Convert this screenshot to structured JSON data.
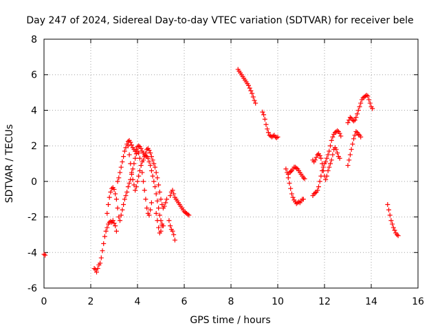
{
  "chart_data": {
    "type": "scatter",
    "title": "Day 247 of 2024, Sidereal Day-to-day VTEC variation (SDTVAR) for receiver bele",
    "xlabel": "GPS time / hours",
    "ylabel": "SDTVAR / TECUs",
    "xlim": [
      0,
      16
    ],
    "ylim": [
      -6,
      8
    ],
    "xticks": [
      "0",
      "2",
      "4",
      "6",
      "8",
      "10",
      "12",
      "14",
      "16"
    ],
    "yticks": [
      "-6",
      "-4",
      "-2",
      "0",
      "2",
      "4",
      "6",
      "8"
    ],
    "grid": true,
    "marker": "plus",
    "color": "#ff0000",
    "series": [
      {
        "points": [
          [
            0.0,
            -4.1
          ],
          [
            0.05,
            -4.15
          ],
          [
            2.15,
            -4.9
          ],
          [
            2.2,
            -4.95
          ],
          [
            2.25,
            -5.1
          ],
          [
            2.3,
            -4.9
          ],
          [
            2.35,
            -4.7
          ],
          [
            2.4,
            -4.6
          ],
          [
            2.45,
            -4.3
          ],
          [
            2.5,
            -3.9
          ],
          [
            2.55,
            -3.5
          ],
          [
            2.6,
            -3.1
          ],
          [
            2.65,
            -2.8
          ],
          [
            2.7,
            -2.6
          ],
          [
            2.75,
            -2.4
          ],
          [
            2.8,
            -2.3
          ],
          [
            2.85,
            -2.25
          ],
          [
            2.9,
            -2.3
          ],
          [
            2.95,
            -2.2
          ],
          [
            3.0,
            -2.35
          ],
          [
            3.05,
            -2.5
          ],
          [
            3.1,
            -2.8
          ],
          [
            2.7,
            -1.8
          ],
          [
            2.75,
            -1.3
          ],
          [
            2.8,
            -0.9
          ],
          [
            2.85,
            -0.6
          ],
          [
            2.9,
            -0.4
          ],
          [
            2.95,
            -0.35
          ],
          [
            3.0,
            -0.45
          ],
          [
            3.05,
            -0.7
          ],
          [
            3.1,
            -1.0
          ],
          [
            3.15,
            -1.5
          ],
          [
            3.2,
            -2.0
          ],
          [
            3.25,
            -2.2
          ],
          [
            3.3,
            -1.9
          ],
          [
            3.35,
            -1.6
          ],
          [
            3.4,
            -1.3
          ],
          [
            3.45,
            -1.0
          ],
          [
            3.5,
            -0.8
          ],
          [
            3.55,
            -0.6
          ],
          [
            3.6,
            -0.3
          ],
          [
            3.65,
            -0.1
          ],
          [
            3.7,
            0.1
          ],
          [
            3.75,
            0.4
          ],
          [
            3.8,
            0.7
          ],
          [
            3.85,
            1.0
          ],
          [
            3.9,
            1.3
          ],
          [
            3.95,
            1.55
          ],
          [
            4.0,
            1.7
          ],
          [
            4.05,
            1.6
          ],
          [
            4.1,
            1.3
          ],
          [
            4.15,
            0.9
          ],
          [
            4.2,
            0.5
          ],
          [
            4.25,
            0.0
          ],
          [
            4.3,
            -0.5
          ],
          [
            4.35,
            -1.0
          ],
          [
            4.4,
            -1.5
          ],
          [
            4.45,
            -1.8
          ],
          [
            4.5,
            -1.9
          ],
          [
            4.55,
            -1.6
          ],
          [
            4.6,
            -1.2
          ],
          [
            3.15,
            0.0
          ],
          [
            3.2,
            0.2
          ],
          [
            3.25,
            0.5
          ],
          [
            3.3,
            0.8
          ],
          [
            3.35,
            1.1
          ],
          [
            3.4,
            1.4
          ],
          [
            3.45,
            1.7
          ],
          [
            3.5,
            1.9
          ],
          [
            3.55,
            2.1
          ],
          [
            3.6,
            2.25
          ],
          [
            3.65,
            2.3
          ],
          [
            3.7,
            2.2
          ],
          [
            3.75,
            2.05
          ],
          [
            3.8,
            1.9
          ],
          [
            3.85,
            1.8
          ],
          [
            3.9,
            1.7
          ],
          [
            3.95,
            1.8
          ],
          [
            4.0,
            1.95
          ],
          [
            4.05,
            2.0
          ],
          [
            4.1,
            1.95
          ],
          [
            4.15,
            1.85
          ],
          [
            4.2,
            1.7
          ],
          [
            4.25,
            1.6
          ],
          [
            4.3,
            1.5
          ],
          [
            4.35,
            1.45
          ],
          [
            4.4,
            1.4
          ],
          [
            4.45,
            1.3
          ],
          [
            4.5,
            1.1
          ],
          [
            4.55,
            0.9
          ],
          [
            4.6,
            0.6
          ],
          [
            4.65,
            0.3
          ],
          [
            4.7,
            0.0
          ],
          [
            4.75,
            -0.3
          ],
          [
            4.8,
            -0.7
          ],
          [
            4.85,
            -1.1
          ],
          [
            4.9,
            -1.5
          ],
          [
            4.95,
            -1.9
          ],
          [
            5.0,
            -2.2
          ],
          [
            5.05,
            -2.4
          ],
          [
            5.1,
            -2.5
          ],
          [
            3.6,
            2.0
          ],
          [
            3.65,
            1.5
          ],
          [
            3.7,
            1.0
          ],
          [
            3.75,
            0.5
          ],
          [
            3.8,
            0.1
          ],
          [
            3.85,
            -0.2
          ],
          [
            3.9,
            -0.5
          ],
          [
            3.95,
            -0.3
          ],
          [
            4.0,
            0.0
          ],
          [
            4.05,
            0.3
          ],
          [
            4.1,
            0.6
          ],
          [
            4.15,
            0.9
          ],
          [
            4.2,
            1.1
          ],
          [
            4.25,
            1.2
          ],
          [
            4.3,
            1.4
          ],
          [
            4.35,
            1.6
          ],
          [
            4.4,
            1.8
          ],
          [
            4.45,
            1.85
          ],
          [
            4.5,
            1.75
          ],
          [
            4.55,
            1.6
          ],
          [
            4.6,
            1.4
          ],
          [
            4.65,
            1.2
          ],
          [
            4.7,
            1.0
          ],
          [
            4.75,
            0.8
          ],
          [
            4.8,
            0.5
          ],
          [
            4.85,
            0.2
          ],
          [
            4.9,
            -0.2
          ],
          [
            4.95,
            -0.6
          ],
          [
            5.0,
            -1.0
          ],
          [
            5.05,
            -1.3
          ],
          [
            5.1,
            -1.5
          ],
          [
            5.15,
            -1.4
          ],
          [
            5.2,
            -1.2
          ],
          [
            5.25,
            -1.0
          ],
          [
            4.8,
            -1.8
          ],
          [
            4.85,
            -2.2
          ],
          [
            4.9,
            -2.6
          ],
          [
            4.95,
            -2.9
          ],
          [
            5.0,
            -2.8
          ],
          [
            5.05,
            -2.5
          ],
          [
            5.4,
            -0.8
          ],
          [
            5.45,
            -0.6
          ],
          [
            5.5,
            -0.5
          ],
          [
            5.55,
            -0.7
          ],
          [
            5.6,
            -0.9
          ],
          [
            5.65,
            -1.0
          ],
          [
            5.7,
            -1.1
          ],
          [
            5.75,
            -1.2
          ],
          [
            5.8,
            -1.3
          ],
          [
            5.85,
            -1.4
          ],
          [
            5.9,
            -1.5
          ],
          [
            5.95,
            -1.6
          ],
          [
            6.0,
            -1.7
          ],
          [
            6.05,
            -1.75
          ],
          [
            6.1,
            -1.8
          ],
          [
            6.15,
            -1.85
          ],
          [
            6.2,
            -1.9
          ],
          [
            5.35,
            -2.2
          ],
          [
            5.4,
            -2.5
          ],
          [
            5.45,
            -2.7
          ],
          [
            5.5,
            -2.8
          ],
          [
            5.55,
            -3.0
          ],
          [
            5.6,
            -3.3
          ],
          [
            8.3,
            6.3
          ],
          [
            8.35,
            6.2
          ],
          [
            8.4,
            6.1
          ],
          [
            8.45,
            6.0
          ],
          [
            8.5,
            5.9
          ],
          [
            8.55,
            5.8
          ],
          [
            8.6,
            5.7
          ],
          [
            8.65,
            5.6
          ],
          [
            8.7,
            5.5
          ],
          [
            8.75,
            5.4
          ],
          [
            8.8,
            5.25
          ],
          [
            8.85,
            5.1
          ],
          [
            8.9,
            4.95
          ],
          [
            8.95,
            4.75
          ],
          [
            9.0,
            4.55
          ],
          [
            9.05,
            4.4
          ],
          [
            9.35,
            3.9
          ],
          [
            9.4,
            3.75
          ],
          [
            9.45,
            3.5
          ],
          [
            9.5,
            3.2
          ],
          [
            9.55,
            2.95
          ],
          [
            9.6,
            2.75
          ],
          [
            9.65,
            2.6
          ],
          [
            9.7,
            2.55
          ],
          [
            9.75,
            2.5
          ],
          [
            9.8,
            2.55
          ],
          [
            9.85,
            2.6
          ],
          [
            9.9,
            2.5
          ],
          [
            9.95,
            2.45
          ],
          [
            10.0,
            2.5
          ],
          [
            10.35,
            0.7
          ],
          [
            10.4,
            0.5
          ],
          [
            10.45,
            0.2
          ],
          [
            10.5,
            -0.1
          ],
          [
            10.55,
            -0.4
          ],
          [
            10.6,
            -0.7
          ],
          [
            10.65,
            -0.9
          ],
          [
            10.7,
            -1.05
          ],
          [
            10.75,
            -1.15
          ],
          [
            10.8,
            -1.25
          ],
          [
            10.85,
            -1.2
          ],
          [
            10.9,
            -1.15
          ],
          [
            10.95,
            -1.2
          ],
          [
            11.0,
            -1.1
          ],
          [
            11.05,
            -1.0
          ],
          [
            11.1,
            -1.0
          ],
          [
            10.45,
            0.4
          ],
          [
            10.5,
            0.5
          ],
          [
            10.55,
            0.55
          ],
          [
            10.6,
            0.6
          ],
          [
            10.65,
            0.7
          ],
          [
            10.7,
            0.8
          ],
          [
            10.75,
            0.8
          ],
          [
            10.8,
            0.75
          ],
          [
            10.85,
            0.7
          ],
          [
            10.9,
            0.6
          ],
          [
            10.95,
            0.5
          ],
          [
            11.0,
            0.4
          ],
          [
            11.05,
            0.3
          ],
          [
            11.1,
            0.2
          ],
          [
            11.15,
            0.15
          ],
          [
            11.5,
            -0.8
          ],
          [
            11.55,
            -0.7
          ],
          [
            11.6,
            -0.65
          ],
          [
            11.65,
            -0.6
          ],
          [
            11.7,
            -0.5
          ],
          [
            11.75,
            -0.3
          ],
          [
            11.8,
            0.0
          ],
          [
            11.85,
            0.3
          ],
          [
            11.9,
            0.6
          ],
          [
            11.95,
            0.8
          ],
          [
            12.0,
            1.0
          ],
          [
            12.05,
            1.1
          ],
          [
            12.1,
            1.3
          ],
          [
            12.15,
            1.5
          ],
          [
            12.2,
            1.7
          ],
          [
            12.25,
            2.0
          ],
          [
            12.3,
            2.3
          ],
          [
            12.35,
            2.5
          ],
          [
            12.4,
            2.65
          ],
          [
            12.45,
            2.75
          ],
          [
            12.5,
            2.8
          ],
          [
            12.55,
            2.85
          ],
          [
            12.6,
            2.8
          ],
          [
            12.65,
            2.7
          ],
          [
            12.7,
            2.55
          ],
          [
            11.5,
            1.2
          ],
          [
            11.55,
            1.1
          ],
          [
            11.6,
            1.2
          ],
          [
            11.65,
            1.35
          ],
          [
            11.7,
            1.5
          ],
          [
            11.75,
            1.55
          ],
          [
            11.8,
            1.45
          ],
          [
            11.85,
            1.3
          ],
          [
            11.9,
            1.0
          ],
          [
            11.95,
            0.6
          ],
          [
            12.0,
            0.3
          ],
          [
            12.05,
            0.1
          ],
          [
            12.1,
            0.3
          ],
          [
            12.15,
            0.6
          ],
          [
            12.2,
            0.8
          ],
          [
            12.25,
            1.0
          ],
          [
            12.3,
            1.2
          ],
          [
            12.35,
            1.5
          ],
          [
            12.4,
            1.8
          ],
          [
            12.45,
            1.9
          ],
          [
            12.5,
            1.8
          ],
          [
            12.55,
            1.6
          ],
          [
            12.6,
            1.4
          ],
          [
            12.65,
            1.3
          ],
          [
            13.0,
            0.9
          ],
          [
            13.05,
            1.2
          ],
          [
            13.1,
            1.5
          ],
          [
            13.15,
            1.8
          ],
          [
            13.2,
            2.1
          ],
          [
            13.25,
            2.4
          ],
          [
            13.3,
            2.6
          ],
          [
            13.35,
            2.8
          ],
          [
            13.4,
            2.75
          ],
          [
            13.45,
            2.65
          ],
          [
            13.5,
            2.6
          ],
          [
            13.55,
            2.5
          ],
          [
            13.0,
            3.3
          ],
          [
            13.05,
            3.45
          ],
          [
            13.1,
            3.6
          ],
          [
            13.15,
            3.55
          ],
          [
            13.2,
            3.45
          ],
          [
            13.25,
            3.4
          ],
          [
            13.3,
            3.45
          ],
          [
            13.35,
            3.6
          ],
          [
            13.4,
            3.8
          ],
          [
            13.45,
            4.0
          ],
          [
            13.5,
            4.2
          ],
          [
            13.55,
            4.4
          ],
          [
            13.6,
            4.6
          ],
          [
            13.65,
            4.7
          ],
          [
            13.7,
            4.75
          ],
          [
            13.75,
            4.8
          ],
          [
            13.8,
            4.85
          ],
          [
            13.85,
            4.8
          ],
          [
            13.9,
            4.6
          ],
          [
            13.95,
            4.4
          ],
          [
            14.0,
            4.2
          ],
          [
            14.05,
            4.1
          ],
          [
            14.7,
            -1.3
          ],
          [
            14.75,
            -1.6
          ],
          [
            14.8,
            -1.9
          ],
          [
            14.85,
            -2.2
          ],
          [
            14.9,
            -2.4
          ],
          [
            14.95,
            -2.6
          ],
          [
            15.0,
            -2.75
          ],
          [
            15.05,
            -2.9
          ],
          [
            15.1,
            -3.0
          ],
          [
            15.15,
            -3.05
          ]
        ]
      }
    ]
  }
}
